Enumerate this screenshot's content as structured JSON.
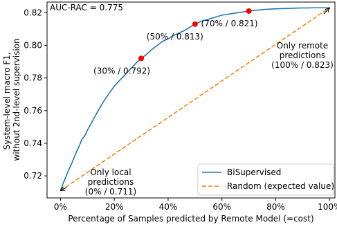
{
  "chart_data": {
    "type": "line",
    "xlabel": "Percentage of Samples predicted by Remote Model (=cost)",
    "ylabel_lines": [
      "System-level macro F1,",
      "without 2nd-level supervision"
    ],
    "xlim": [
      -5,
      102
    ],
    "ylim": [
      0.7065,
      0.8265
    ],
    "x_ticks": [
      0,
      20,
      40,
      60,
      80,
      100
    ],
    "x_tick_labels": [
      "0%",
      "20%",
      "40%",
      "60%",
      "80%",
      "100%"
    ],
    "y_ticks": [
      0.72,
      0.74,
      0.76,
      0.78,
      0.8,
      0.82
    ],
    "y_tick_labels": [
      "0.72",
      "0.74",
      "0.76",
      "0.78",
      "0.80",
      "0.82"
    ],
    "corner_text": "AUC-RAC = 0.775",
    "grid": false,
    "legend_position": "lower-right",
    "series": [
      {
        "name": "BiSupervised",
        "color": "#1f77b4",
        "style": "solid",
        "x": [
          0,
          1,
          2,
          3,
          4,
          5,
          6,
          7,
          8,
          9,
          10,
          12,
          14,
          16,
          18,
          20,
          22,
          24,
          26,
          28,
          30,
          32,
          34,
          36,
          38,
          40,
          42,
          44,
          46,
          48,
          50,
          52,
          54,
          56,
          58,
          60,
          62,
          64,
          66,
          68,
          70,
          72,
          74,
          76,
          78,
          80,
          82,
          84,
          86,
          88,
          90,
          92,
          94,
          96,
          98,
          100
        ],
        "y": [
          0.711,
          0.7155,
          0.7195,
          0.7235,
          0.727,
          0.731,
          0.735,
          0.7385,
          0.7425,
          0.7445,
          0.748,
          0.754,
          0.76,
          0.7655,
          0.7705,
          0.775,
          0.7785,
          0.782,
          0.7855,
          0.789,
          0.792,
          0.7945,
          0.7975,
          0.8,
          0.8025,
          0.804,
          0.806,
          0.8075,
          0.809,
          0.811,
          0.813,
          0.8145,
          0.8155,
          0.8165,
          0.8175,
          0.8185,
          0.819,
          0.8195,
          0.82,
          0.8205,
          0.821,
          0.8214,
          0.8217,
          0.822,
          0.8222,
          0.8224,
          0.8225,
          0.8226,
          0.8227,
          0.8228,
          0.8229,
          0.8229,
          0.823,
          0.823,
          0.823,
          0.823
        ]
      },
      {
        "name": "Random (expected value)",
        "color": "#ff7f0e",
        "style": "dashed",
        "x": [
          0,
          100
        ],
        "y": [
          0.711,
          0.823
        ]
      }
    ],
    "highlight_points": [
      {
        "x": 30,
        "y": 0.792,
        "label": "(30% / 0.792)"
      },
      {
        "x": 50,
        "y": 0.813,
        "label": "(50% / 0.813)"
      },
      {
        "x": 70,
        "y": 0.821,
        "label": "(70% / 0.821)"
      }
    ],
    "highlight_color": "#ff0000",
    "annotations": [
      {
        "lines": [
          "Only local",
          "predictions",
          "(0% / 0.711)"
        ],
        "target_x": 0,
        "target_y": 0.711
      },
      {
        "lines": [
          "Only remote",
          "predictions",
          "(100% / 0.823)"
        ],
        "target_x": 100,
        "target_y": 0.823
      }
    ]
  }
}
